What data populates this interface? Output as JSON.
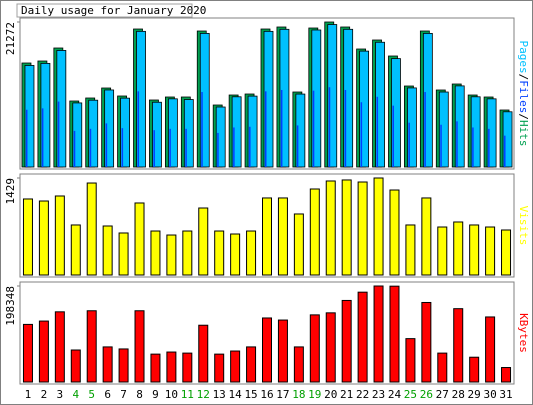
{
  "chart_data": {
    "type": "bar",
    "title": "Daily usage for January 2020",
    "categories": [
      "1",
      "2",
      "3",
      "4",
      "5",
      "6",
      "7",
      "8",
      "9",
      "10",
      "11",
      "12",
      "13",
      "14",
      "15",
      "16",
      "17",
      "18",
      "19",
      "20",
      "21",
      "22",
      "23",
      "24",
      "25",
      "26",
      "27",
      "28",
      "29",
      "30",
      "31"
    ],
    "category_colors": [
      "#000000",
      "#000000",
      "#000000",
      "#00a000",
      "#00a000",
      "#000000",
      "#000000",
      "#000000",
      "#000000",
      "#000000",
      "#00a000",
      "#00a000",
      "#000000",
      "#000000",
      "#000000",
      "#000000",
      "#000000",
      "#00a000",
      "#00a000",
      "#000000",
      "#000000",
      "#000000",
      "#000000",
      "#000000",
      "#00a000",
      "#00a000",
      "#000000",
      "#000000",
      "#000000",
      "#000000",
      "#000000"
    ],
    "legend_separator": "/",
    "panels": [
      {
        "ylim": [
          0,
          21272
        ],
        "yticks": [
          21272
        ],
        "series": [
          {
            "name": "Pages",
            "color": "#00c0ff",
            "values": [
              14900,
              15200,
              17100,
              9400,
              9800,
              11300,
              10100,
              19900,
              9500,
              10000,
              9900,
              19600,
              8800,
              10300,
              10400,
              19900,
              20200,
              10700,
              20100,
              20900,
              20200,
              17000,
              18300,
              15900,
              11600,
              19600,
              11000,
              11900,
              10300,
              10000,
              8100
            ]
          },
          {
            "name": "Files",
            "color": "#0040ff",
            "values": [
              8400,
              8600,
              9600,
              5300,
              5600,
              6400,
              5700,
              11100,
              5400,
              5600,
              5600,
              11000,
              5000,
              5800,
              5900,
              11100,
              11300,
              6100,
              11200,
              11700,
              11300,
              9500,
              10300,
              9000,
              6500,
              11000,
              6200,
              6700,
              5800,
              5600,
              4600
            ]
          },
          {
            "name": "Hits",
            "color": "#00a050",
            "values": [
              15256,
              15550,
              17457,
              9682,
              10122,
              11589,
              10416,
              20244,
              9829,
              10269,
              10269,
              19951,
              9095,
              10562,
              10709,
              20244,
              20538,
              11002,
              20391,
              21272,
              20538,
              17310,
              18630,
              16283,
              11882,
              19951,
              11296,
              12176,
              10562,
              10269,
              8362
            ]
          }
        ]
      },
      {
        "ylim": [
          0,
          1429
        ],
        "yticks": [
          1429
        ],
        "series": [
          {
            "name": "Visits",
            "color": "#ffff00",
            "values": [
              1120,
              1090,
              1164,
              737,
              1355,
              722,
              619,
              1061,
              648,
              589,
              648,
              987,
              648,
              604,
              648,
              1135,
              1135,
              899,
              1267,
              1385,
              1400,
              1370,
              1429,
              1252,
              737,
              1135,
              707,
              781,
              737,
              707,
              663
            ]
          }
        ]
      },
      {
        "ylim": [
          0,
          198348
        ],
        "yticks": [
          198348
        ],
        "series": [
          {
            "name": "KBytes",
            "color": "#ff0000",
            "values": [
              119000,
              125900,
              145000,
              66100,
              147200,
              72500,
              68300,
              147200,
              57600,
              61900,
              59700,
              117300,
              57600,
              64000,
              72500,
              132300,
              128000,
              72500,
              138700,
              142900,
              168500,
              185600,
              198348,
              198000,
              89600,
              164300,
              59700,
              151500,
              51200,
              134400,
              29900
            ]
          }
        ]
      }
    ]
  }
}
